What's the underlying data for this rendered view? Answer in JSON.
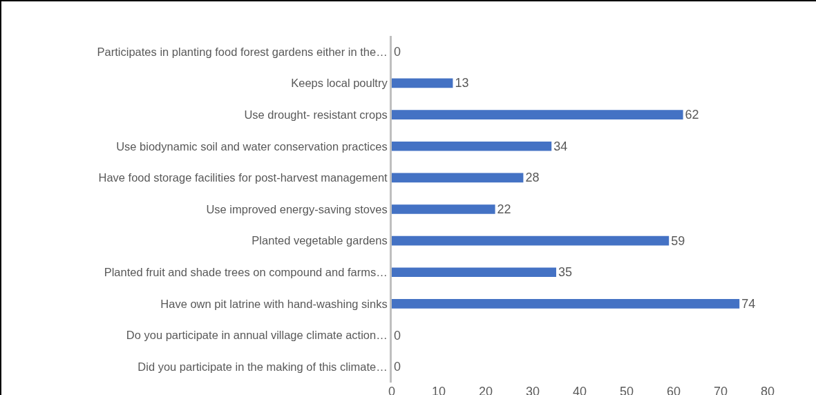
{
  "chart_data": {
    "type": "bar",
    "orientation": "horizontal",
    "categories": [
      "Participates in planting food forest gardens either in the…",
      "Keeps local poultry",
      "Use drought- resistant crops",
      "Use biodynamic soil and water conservation practices",
      "Have food storage facilities for post-harvest management",
      "Use improved energy-saving stoves",
      "Planted vegetable gardens",
      "Planted fruit and shade trees on compound and farms…",
      "Have own pit latrine with hand-washing sinks",
      "Do you participate in annual village climate action…",
      "Did you participate in the making of this climate…"
    ],
    "values": [
      0,
      13,
      62,
      34,
      28,
      22,
      59,
      35,
      74,
      0,
      0
    ],
    "color": "#4472c4",
    "xlim": [
      0,
      80
    ],
    "xticks": [
      0,
      10,
      20,
      30,
      40,
      50,
      60,
      70,
      80
    ],
    "grid": false,
    "data_labels": true
  }
}
